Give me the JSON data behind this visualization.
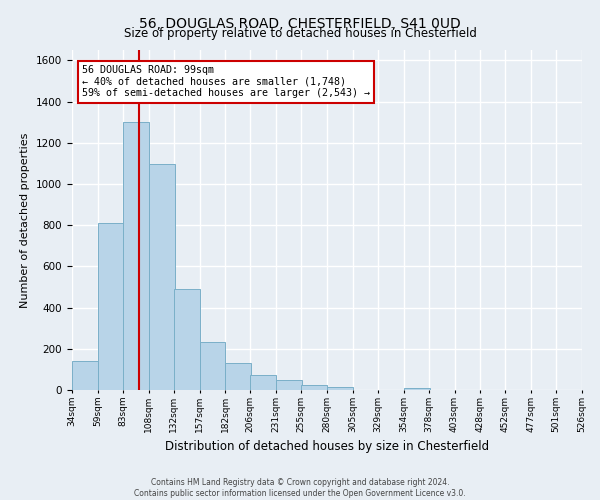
{
  "title": "56, DOUGLAS ROAD, CHESTERFIELD, S41 0UD",
  "subtitle": "Size of property relative to detached houses in Chesterfield",
  "xlabel": "Distribution of detached houses by size in Chesterfield",
  "ylabel": "Number of detached properties",
  "bar_values": [
    140,
    810,
    1300,
    1095,
    490,
    235,
    130,
    75,
    50,
    25,
    15,
    0,
    0,
    10,
    0,
    0,
    0,
    0,
    0,
    0
  ],
  "bin_labels": [
    "34sqm",
    "59sqm",
    "83sqm",
    "108sqm",
    "132sqm",
    "157sqm",
    "182sqm",
    "206sqm",
    "231sqm",
    "255sqm",
    "280sqm",
    "305sqm",
    "329sqm",
    "354sqm",
    "378sqm",
    "403sqm",
    "428sqm",
    "452sqm",
    "477sqm",
    "501sqm",
    "526sqm"
  ],
  "bar_color": "#b8d4e8",
  "bar_edge_color": "#7aafc8",
  "vline_x": 99,
  "vline_color": "#cc0000",
  "annotation_title": "56 DOUGLAS ROAD: 99sqm",
  "annotation_line1": "← 40% of detached houses are smaller (1,748)",
  "annotation_line2": "59% of semi-detached houses are larger (2,543) →",
  "annotation_box_edge": "#cc0000",
  "bin_edges": [
    34,
    59,
    83,
    108,
    132,
    157,
    182,
    206,
    231,
    255,
    280,
    305,
    329,
    354,
    378,
    403,
    428,
    452,
    477,
    501,
    526
  ],
  "ylim": [
    0,
    1650
  ],
  "yticks": [
    0,
    200,
    400,
    600,
    800,
    1000,
    1200,
    1400,
    1600
  ],
  "background_color": "#e8eef4",
  "plot_background_color": "#e8eef4",
  "footer_line1": "Contains HM Land Registry data © Crown copyright and database right 2024.",
  "footer_line2": "Contains public sector information licensed under the Open Government Licence v3.0."
}
